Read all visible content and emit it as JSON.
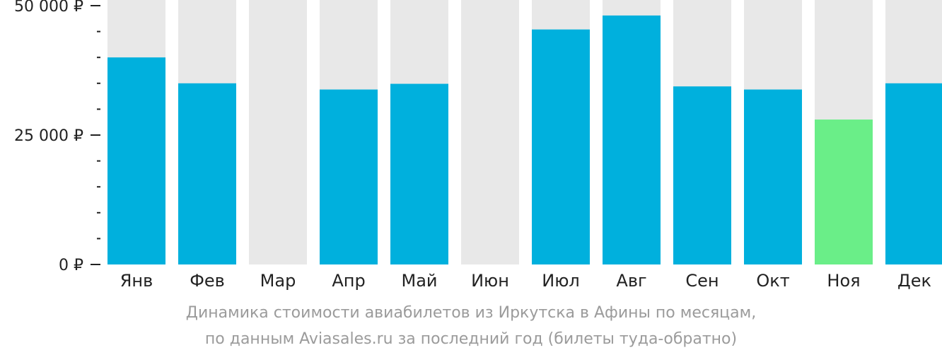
{
  "chart_data": {
    "type": "bar",
    "categories": [
      "Янв",
      "Фев",
      "Мар",
      "Апр",
      "Май",
      "Июн",
      "Июл",
      "Авг",
      "Сен",
      "Окт",
      "Ноя",
      "Дек"
    ],
    "values": [
      40000,
      35000,
      null,
      33800,
      34900,
      null,
      45400,
      48100,
      34400,
      33800,
      28000,
      35000
    ],
    "ylim": [
      0,
      52000
    ],
    "y_ticks": [
      {
        "value": 0,
        "label": "0 ₽"
      },
      {
        "value": 25000,
        "label": "25 000 ₽"
      },
      {
        "value": 50000,
        "label": "50 000 ₽"
      }
    ],
    "minor_tick_step": 5000,
    "highlight_category": "Ноя",
    "colors": {
      "bar": "#00b0dd",
      "highlight": "#6aee88",
      "background_column": "#e8e8e8",
      "axis_text": "#222222",
      "caption_text": "#9b9b9b"
    }
  },
  "caption": {
    "line1": "Динамика стоимости авиабилетов из Иркутска в Афины по месяцам,",
    "line2": "по данным Aviasales.ru за последний год (билеты туда-обратно)"
  }
}
